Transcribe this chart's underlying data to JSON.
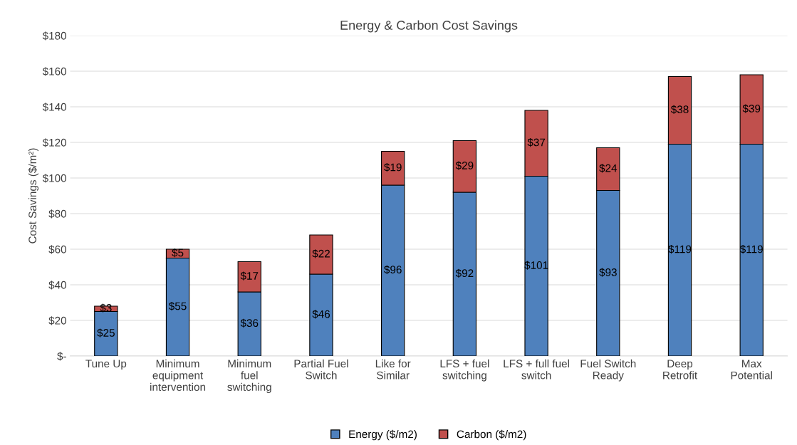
{
  "chart_data": {
    "type": "bar",
    "title": "Energy & Carbon Cost Savings",
    "ylabel": "Cost Savings ($/m²)",
    "categories": [
      "Tune Up",
      "Minimum\nequipment\nintervention",
      "Minimum\nfuel\nswitching",
      "Partial Fuel\nSwitch",
      "Like for\nSimilar",
      "LFS + fuel\nswitching",
      "LFS + full fuel\nswitch",
      "Fuel Switch\nReady",
      "Deep\nRetrofit",
      "Max\nPotential"
    ],
    "stacked": true,
    "series": [
      {
        "name": "Energy ($/m2)",
        "color": "#4f81bd",
        "values": [
          25,
          55,
          36,
          46,
          96,
          92,
          101,
          93,
          119,
          119
        ],
        "value_labels": [
          "$25",
          "$55",
          "$36",
          "$46",
          "$96",
          "$92",
          "$101",
          "$93",
          "$119",
          "$119"
        ]
      },
      {
        "name": "Carbon ($/m2)",
        "color": "#c0504d",
        "values": [
          3,
          5,
          17,
          22,
          19,
          29,
          37,
          24,
          38,
          39
        ],
        "value_labels": [
          "$3",
          "$5",
          "$17",
          "$22",
          "$19",
          "$29",
          "$37",
          "$24",
          "$38",
          "$39"
        ]
      }
    ],
    "ylim": [
      0,
      180
    ],
    "yticks": [
      {
        "value": 0,
        "label": "$-"
      },
      {
        "value": 20,
        "label": "$20"
      },
      {
        "value": 40,
        "label": "$40"
      },
      {
        "value": 60,
        "label": "$60"
      },
      {
        "value": 80,
        "label": "$80"
      },
      {
        "value": 100,
        "label": "$100"
      },
      {
        "value": 120,
        "label": "$120"
      },
      {
        "value": 140,
        "label": "$140"
      },
      {
        "value": 160,
        "label": "$160"
      },
      {
        "value": 180,
        "label": "$180"
      }
    ],
    "grid": "y",
    "legend": "bottom"
  }
}
